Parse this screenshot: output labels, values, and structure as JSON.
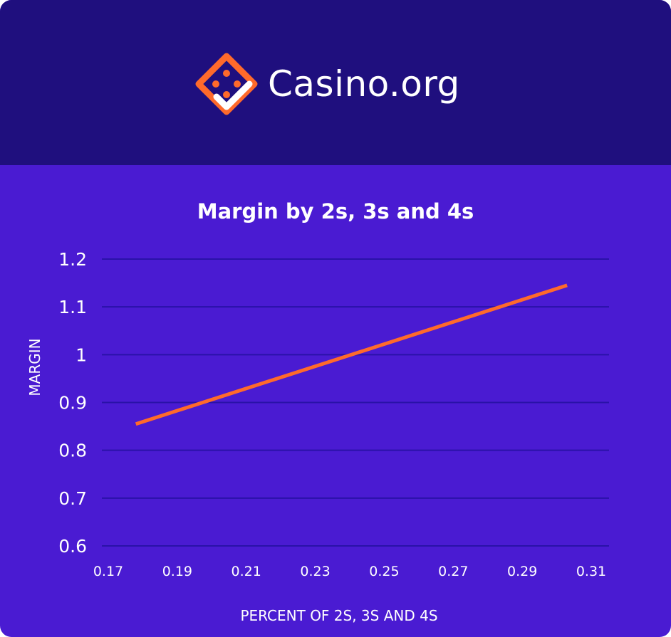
{
  "brand": {
    "name": "Casino.org",
    "logo_icon": "dice-diamond-icon",
    "accent_color": "#ff6a2b",
    "header_color": "#1f0f7e",
    "background_color": "#4a1bd2"
  },
  "chart_data": {
    "type": "line",
    "title": "Margin by 2s, 3s and 4s",
    "xlabel": "PERCENT OF 2S, 3S AND 4S",
    "ylabel": "MARGIN",
    "xlim": [
      0.17,
      0.31
    ],
    "ylim": [
      0.6,
      1.2
    ],
    "x_ticks": [
      "0.17",
      "0.19",
      "0.21",
      "0.23",
      "0.25",
      "0.27",
      "0.29",
      "0.31"
    ],
    "y_ticks": [
      "0.6",
      "0.7",
      "0.8",
      "0.9",
      "1",
      "1.1",
      "1.2"
    ],
    "grid": true,
    "series": [
      {
        "color": "#ff6a2b",
        "points": [
          {
            "x": 0.178,
            "y": 0.855
          },
          {
            "x": 0.303,
            "y": 1.145
          }
        ]
      }
    ]
  }
}
